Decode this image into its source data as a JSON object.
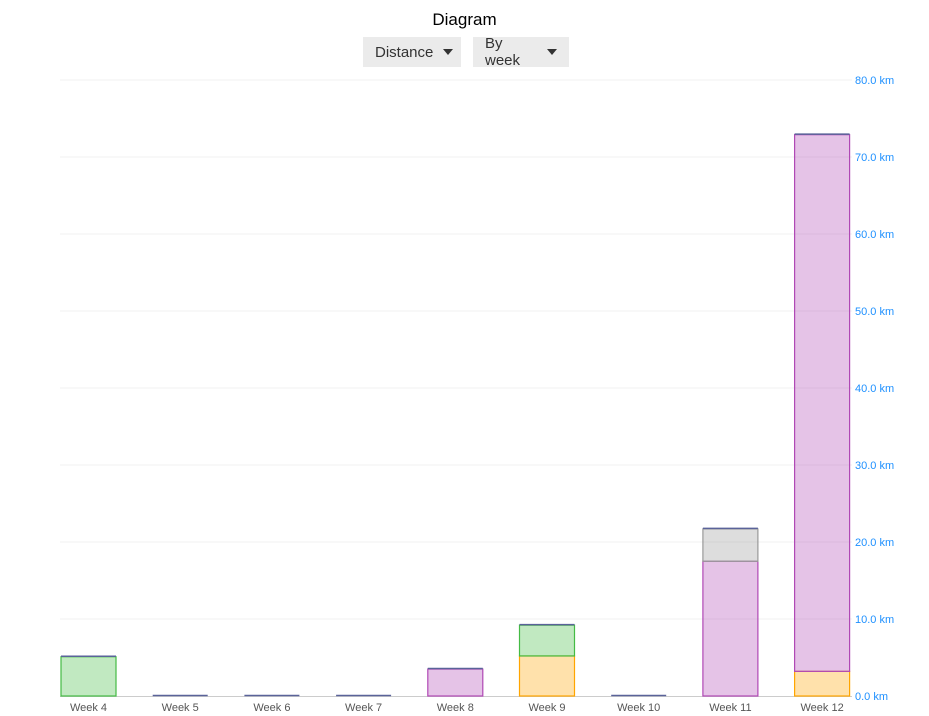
{
  "header": {
    "title": "Diagram",
    "metric_select": "Distance",
    "period_select": "By week"
  },
  "chart_data": {
    "type": "bar",
    "stacked": true,
    "categories": [
      "Week 4",
      "Week 5",
      "Week 6",
      "Week 7",
      "Week 8",
      "Week 9",
      "Week 10",
      "Week 11",
      "Week 12"
    ],
    "series": [
      {
        "color": "#ffa500",
        "values": [
          0,
          0,
          0,
          0,
          0,
          5.2,
          0,
          0,
          3.2
        ]
      },
      {
        "color": "#b048b5",
        "values": [
          0,
          0,
          0,
          0,
          3.5,
          0,
          0,
          17.5,
          69.7
        ]
      },
      {
        "color": "#44bb44",
        "values": [
          5.1,
          0,
          0,
          0,
          0,
          4.0,
          0,
          0,
          0
        ]
      },
      {
        "color": "#999999",
        "values": [
          0,
          0,
          0,
          0,
          0,
          0,
          0,
          4.2,
          0
        ]
      }
    ],
    "ylim": [
      0,
      80
    ],
    "yticks": [
      "0.0 km",
      "10.0 km",
      "20.0 km",
      "30.0 km",
      "40.0 km",
      "50.0 km",
      "60.0 km",
      "70.0 km",
      "80.0 km"
    ],
    "ytick_values": [
      0,
      10,
      20,
      30,
      40,
      50,
      60,
      70,
      80
    ],
    "y_axis_position": "right",
    "grid": true,
    "tick_color": "#1e90ff"
  }
}
